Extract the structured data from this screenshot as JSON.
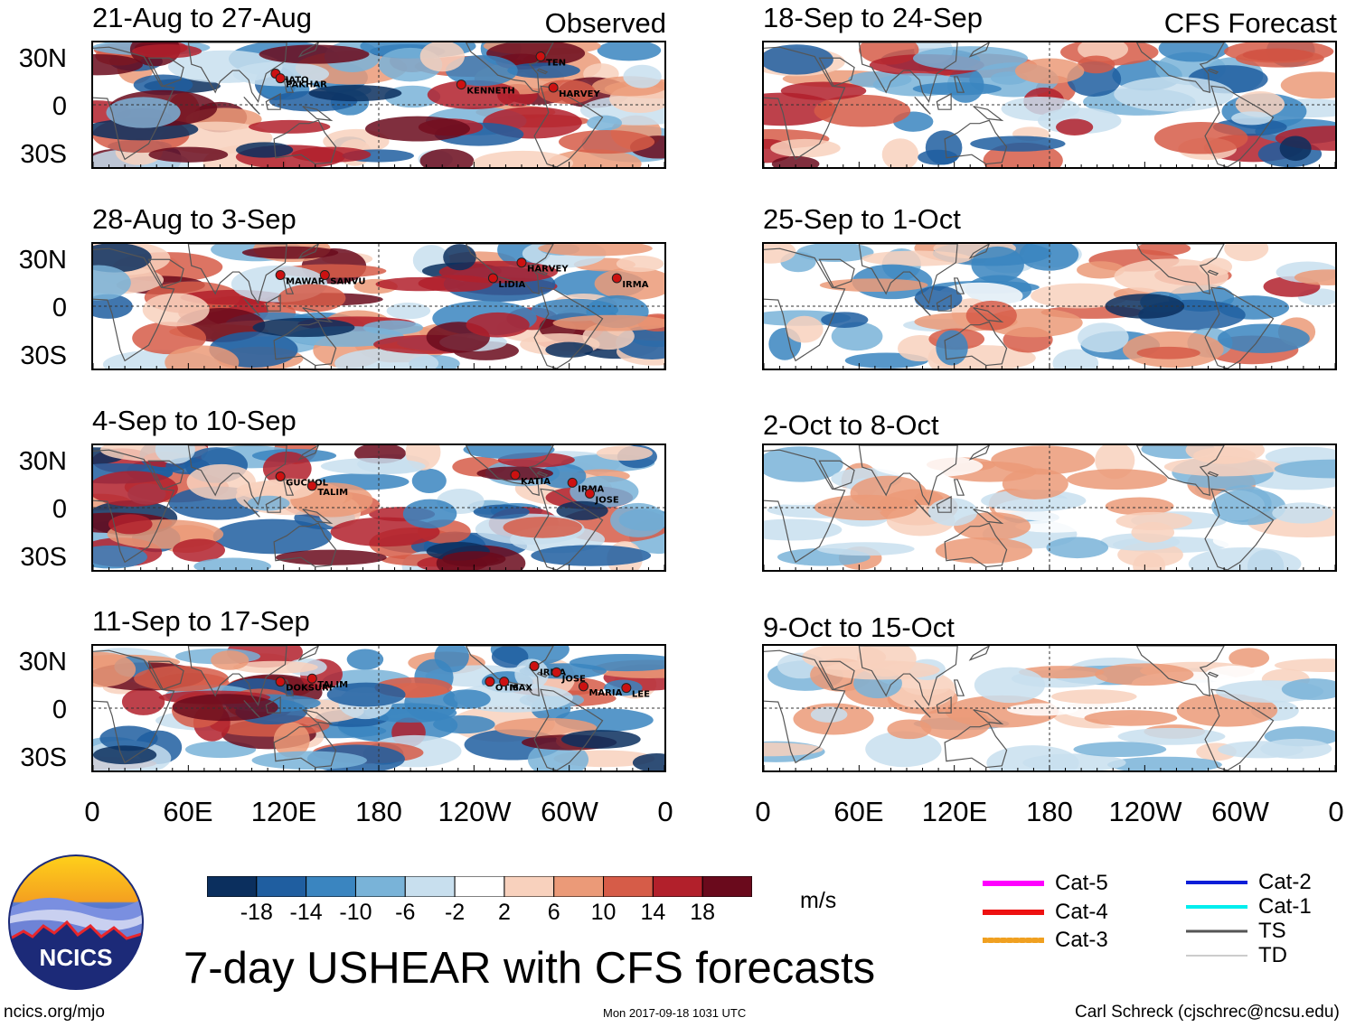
{
  "title": "7-day USHEAR with CFS forecasts",
  "units": "m/s",
  "observed_label": "Observed",
  "forecast_label": "CFS Forecast",
  "lat_labels": [
    "30N",
    "0",
    "30S"
  ],
  "lon_labels": [
    "0",
    "60E",
    "120E",
    "180",
    "120W",
    "60W",
    "0"
  ],
  "logo_text": "NCICS",
  "footer": {
    "left": "ncics.org/mjo",
    "center": "Mon 2017-09-18 1031 UTC",
    "right": "Carl Schreck (cjschrec@ncsu.edu)"
  },
  "colorbar": {
    "levels": [
      "-18",
      "-14",
      "-10",
      "-6",
      "-2",
      "2",
      "6",
      "10",
      "14",
      "18"
    ],
    "colors": [
      "#0b2f5e",
      "#1f5ea0",
      "#3a85c0",
      "#79b3d8",
      "#c8dfee",
      "#ffffff",
      "#f8d1bd",
      "#eb9a78",
      "#d65c48",
      "#b2202b",
      "#6a0a1c"
    ]
  },
  "legend": [
    {
      "label": "Cat-5",
      "color": "#ff00ff",
      "width": 6
    },
    {
      "label": "Cat-4",
      "color": "#ee1111",
      "width": 6
    },
    {
      "label": "Cat-3",
      "color": "#f0a020",
      "width": 6
    },
    {
      "label": "Cat-2",
      "color": "#0a1ed8",
      "width": 4
    },
    {
      "label": "Cat-1",
      "color": "#00eeee",
      "width": 4
    },
    {
      "label": "TS",
      "color": "#555555",
      "width": 3
    },
    {
      "label": "TD",
      "color": "#999999",
      "width": 1
    }
  ],
  "chart_data": [
    {
      "type": "heatmap",
      "title": "21-Aug to 27-Aug",
      "column": "observed",
      "storms": [
        {
          "name": "HATO",
          "lon": 115,
          "lat": 20
        },
        {
          "name": "PAKHAR",
          "lon": 118,
          "lat": 17
        },
        {
          "name": "KENNETH",
          "lon": 232,
          "lat": 13
        },
        {
          "name": "TEN",
          "lon": 282,
          "lat": 31
        },
        {
          "name": "HARVEY",
          "lon": 290,
          "lat": 11
        }
      ]
    },
    {
      "type": "heatmap",
      "title": "28-Aug to 3-Sep",
      "column": "observed",
      "storms": [
        {
          "name": "MAWAR",
          "lon": 118,
          "lat": 20
        },
        {
          "name": "SANVU",
          "lon": 146,
          "lat": 20
        },
        {
          "name": "HARVEY",
          "lon": 270,
          "lat": 28
        },
        {
          "name": "LIDIA",
          "lon": 252,
          "lat": 18
        },
        {
          "name": "IRMA",
          "lon": 330,
          "lat": 18
        }
      ]
    },
    {
      "type": "heatmap",
      "title": "4-Sep to 10-Sep",
      "column": "observed",
      "storms": [
        {
          "name": "GUCHOL",
          "lon": 118,
          "lat": 20
        },
        {
          "name": "TALIM",
          "lon": 138,
          "lat": 14
        },
        {
          "name": "KATIA",
          "lon": 266,
          "lat": 21
        },
        {
          "name": "IRMA",
          "lon": 302,
          "lat": 16
        },
        {
          "name": "JOSE",
          "lon": 313,
          "lat": 9
        }
      ]
    },
    {
      "type": "heatmap",
      "title": "11-Sep to 17-Sep",
      "column": "observed",
      "storms": [
        {
          "name": "DOKSURI",
          "lon": 118,
          "lat": 17
        },
        {
          "name": "TALIM",
          "lon": 138,
          "lat": 19
        },
        {
          "name": "OTIS",
          "lon": 250,
          "lat": 17
        },
        {
          "name": "MAX",
          "lon": 259,
          "lat": 17
        },
        {
          "name": "IRMA",
          "lon": 278,
          "lat": 27
        },
        {
          "name": "JOSE",
          "lon": 292,
          "lat": 23
        },
        {
          "name": "MARIA",
          "lon": 309,
          "lat": 14
        },
        {
          "name": "LEE",
          "lon": 336,
          "lat": 13
        }
      ]
    },
    {
      "type": "heatmap",
      "title": "18-Sep to 24-Sep",
      "column": "forecast",
      "storms": []
    },
    {
      "type": "heatmap",
      "title": "25-Sep to 1-Oct",
      "column": "forecast",
      "storms": []
    },
    {
      "type": "heatmap",
      "title": "2-Oct to 8-Oct",
      "column": "forecast",
      "storms": []
    },
    {
      "type": "heatmap",
      "title": "9-Oct to 15-Oct",
      "column": "forecast",
      "storms": []
    }
  ]
}
